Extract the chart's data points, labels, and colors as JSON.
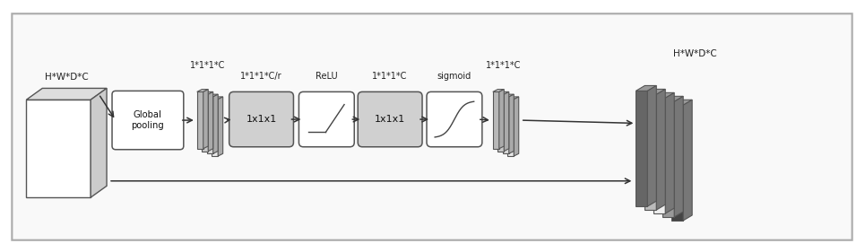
{
  "fig_width": 9.65,
  "fig_height": 2.81,
  "input_label": "H*W*D*C",
  "output_label": "H*W*D*C",
  "global_pool_label": "Global\npooling",
  "label_after_gp": "1*1*1*C",
  "label_conv1": "1*1*1*C/r",
  "label_relu": "ReLU",
  "label_conv2": "1*1*1*C",
  "label_sigmoid": "sigmoid",
  "label_after_sig": "1*1*1*C",
  "conv1_text": "1x1x1",
  "conv2_text": "1x1x1",
  "sheet_colors_left": [
    "#e8e8e8",
    "#d8d8d8",
    "#c8c8c8",
    "#b8b8b8"
  ],
  "sheet_colors_right": [
    "#e8e8e8",
    "#d8d8d8",
    "#c8c8c8",
    "#b8b8b8"
  ],
  "output_colors": [
    "#444444",
    "#999999",
    "#eeeeee",
    "#bbbbbb",
    "#666666"
  ],
  "cube_face": "#ffffff",
  "cube_side": "#cccccc",
  "cube_top": "#dddddd"
}
